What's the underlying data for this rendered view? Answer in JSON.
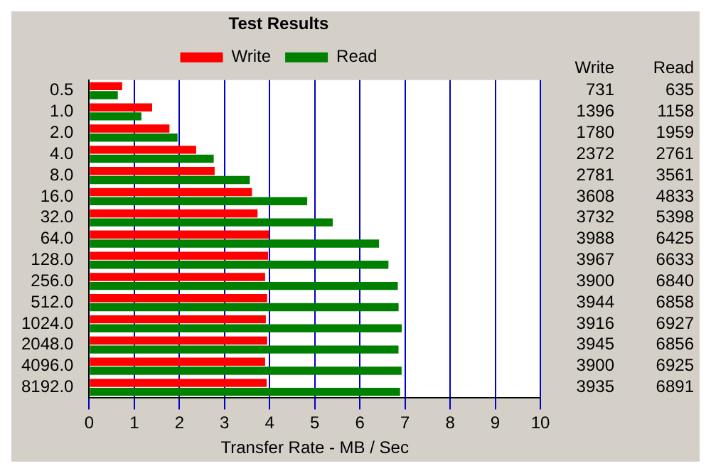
{
  "chart_data": {
    "type": "bar",
    "orientation": "horizontal",
    "title": "Test Results",
    "xlabel": "Transfer Rate - MB / Sec",
    "categories": [
      "0.5",
      "1.0",
      "2.0",
      "4.0",
      "8.0",
      "16.0",
      "32.0",
      "64.0",
      "128.0",
      "256.0",
      "512.0",
      "1024.0",
      "2048.0",
      "4096.0",
      "8192.0"
    ],
    "series": [
      {
        "name": "Write",
        "color": "#ff0000",
        "values": [
          0.731,
          1.396,
          1.78,
          2.372,
          2.781,
          3.608,
          3.732,
          3.988,
          3.967,
          3.9,
          3.944,
          3.916,
          3.945,
          3.9,
          3.935
        ]
      },
      {
        "name": "Read",
        "color": "#008000",
        "values": [
          0.635,
          1.158,
          1.959,
          2.761,
          3.561,
          4.833,
          5.398,
          6.425,
          6.633,
          6.84,
          6.858,
          6.927,
          6.856,
          6.925,
          6.891
        ]
      }
    ],
    "annotations": [
      "731",
      "635",
      "1396",
      "1158",
      "1780",
      "1959",
      "2372",
      "2761",
      "2781",
      "3561",
      "3608",
      "4833",
      "3732",
      "5398",
      "3988",
      "6425",
      "3967",
      "6633",
      "3900",
      "6840",
      "3944",
      "6858",
      "3916",
      "6927",
      "3945",
      "6856",
      "3900",
      "6925",
      "3935",
      "6891"
    ],
    "xlim": [
      0,
      10
    ],
    "xticks": [
      0,
      1,
      2,
      3,
      4,
      5,
      6,
      7,
      8,
      9,
      10
    ],
    "grid": "x",
    "legend": "top"
  }
}
